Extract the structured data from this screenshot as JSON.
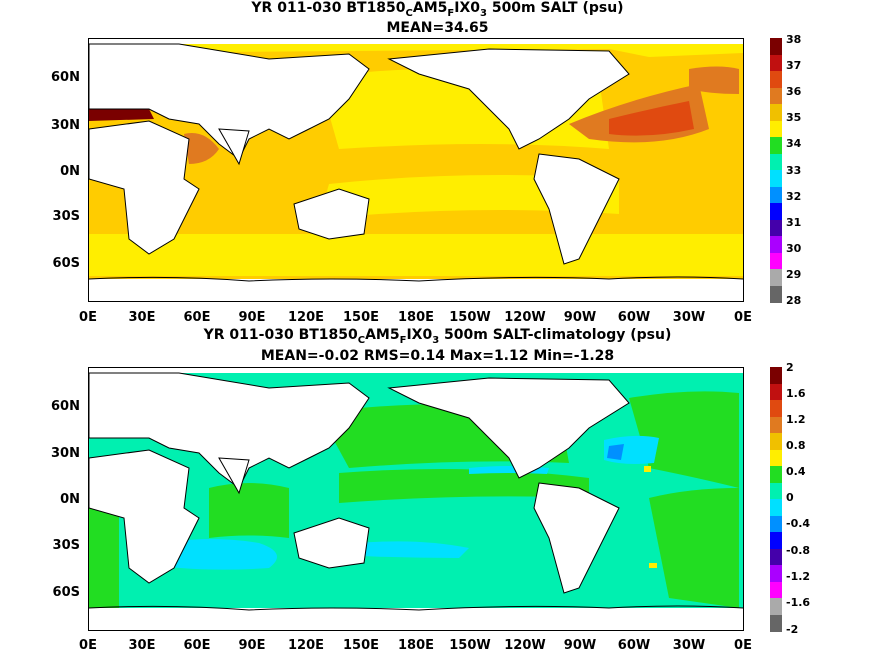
{
  "panel1": {
    "title_parts": [
      "YR 011-030 BT1850",
      "C",
      "AM5",
      "F",
      "IX0",
      "3",
      " 500m SALT (psu)"
    ],
    "subtitle": "MEAN=34.65",
    "lat_labels": [
      "60N",
      "30N",
      "0N",
      "30S",
      "60S"
    ],
    "lon_labels": [
      "0E",
      "30E",
      "60E",
      "90E",
      "120E",
      "150E",
      "180E",
      "150W",
      "120W",
      "90W",
      "60W",
      "30W",
      "0E"
    ],
    "colorbar": {
      "labels": [
        "38",
        "37",
        "36",
        "35",
        "34",
        "33",
        "32",
        "31",
        "30",
        "29",
        "28"
      ],
      "colors": [
        "#7a0000",
        "#c01010",
        "#e04a10",
        "#e07a20",
        "#f0c000",
        "#ffee00",
        "#22dd22",
        "#00f0b0",
        "#00e0ff",
        "#0090ff",
        "#0000ff",
        "#4400aa",
        "#aa00ff",
        "#ff00ff",
        "#aaaaaa",
        "#666666"
      ]
    }
  },
  "panel2": {
    "title_parts": [
      "YR 011-030 BT1850",
      "C",
      "AM5",
      "F",
      "IX0",
      "3",
      " 500m SALT-climatology (psu)"
    ],
    "subtitle": "MEAN=-0.02   RMS=0.14   Max=1.12   Min=-1.28",
    "lat_labels": [
      "60N",
      "30N",
      "0N",
      "30S",
      "60S"
    ],
    "lon_labels": [
      "0E",
      "30E",
      "60E",
      "90E",
      "120E",
      "150E",
      "180E",
      "150W",
      "120W",
      "90W",
      "60W",
      "30W",
      "0E"
    ],
    "colorbar": {
      "labels": [
        "2",
        "1.6",
        "1.2",
        "0.8",
        "0.4",
        "0",
        "-0.4",
        "-0.8",
        "-1.2",
        "-1.6",
        "-2"
      ],
      "colors": [
        "#7a0000",
        "#c01010",
        "#e04a10",
        "#e07a20",
        "#f0c000",
        "#ffee00",
        "#22dd22",
        "#00f0b0",
        "#00e0ff",
        "#0090ff",
        "#0000ff",
        "#4400aa",
        "#aa00ff",
        "#ff00ff",
        "#aaaaaa",
        "#666666"
      ]
    }
  }
}
